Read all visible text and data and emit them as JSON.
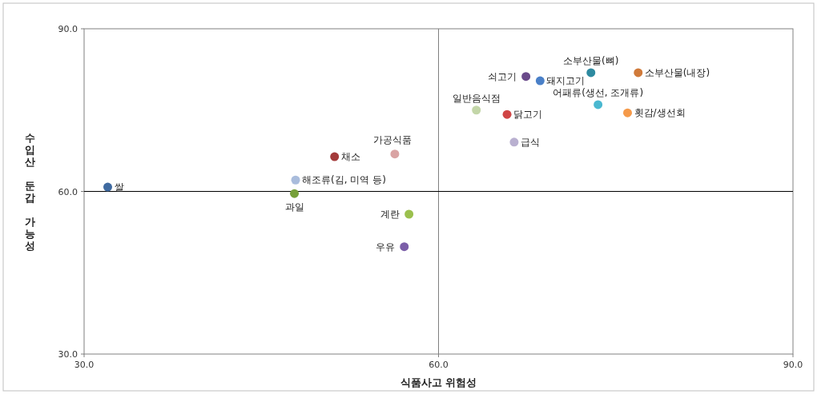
{
  "chart_data": {
    "type": "scatter",
    "xlabel": "식품사고 위험성",
    "ylabel": "수입산 둔갑 가능성",
    "xlim": [
      30,
      90
    ],
    "ylim": [
      30,
      90
    ],
    "xticks": [
      {
        "value": 30,
        "label": "30.0"
      },
      {
        "value": 60,
        "label": "60.0"
      },
      {
        "value": 90,
        "label": "90.0"
      }
    ],
    "yticks": [
      {
        "value": 30,
        "label": "30.0"
      },
      {
        "value": 60,
        "label": "60.0"
      },
      {
        "value": 90,
        "label": "90.0"
      }
    ],
    "grid": false,
    "marker": "circle",
    "ref_lines": [
      {
        "axis": "x",
        "value": 60,
        "color": "#808080"
      },
      {
        "axis": "y",
        "value": 60,
        "color": "#000000"
      }
    ],
    "series": [
      {
        "name": "쌀",
        "color": "#3f6aa0",
        "x": [
          32.0
        ],
        "values": [
          60.8
        ]
      },
      {
        "name": "과일",
        "color": "#77a03a",
        "x": [
          47.8
        ],
        "values": [
          59.6
        ]
      },
      {
        "name": "해조류(김, 미역 등)",
        "color": "#a9bcdc",
        "x": [
          47.9
        ],
        "values": [
          62.1
        ]
      },
      {
        "name": "채소",
        "color": "#a33a3a",
        "x": [
          51.2
        ],
        "values": [
          66.4
        ]
      },
      {
        "name": "가공식품",
        "color": "#d9a3a3",
        "x": [
          56.3
        ],
        "values": [
          66.9
        ]
      },
      {
        "name": "계란",
        "color": "#9bc04e",
        "x": [
          57.5
        ],
        "values": [
          55.8
        ]
      },
      {
        "name": "우유",
        "color": "#7b5ea8",
        "x": [
          57.1
        ],
        "values": [
          49.8
        ]
      },
      {
        "name": "일반음식점",
        "color": "#c3d6a8",
        "x": [
          63.2
        ],
        "values": [
          75.0
        ]
      },
      {
        "name": "닭고기",
        "color": "#d04545",
        "x": [
          65.8
        ],
        "values": [
          74.2
        ]
      },
      {
        "name": "급식",
        "color": "#b9b0d0",
        "x": [
          66.4
        ],
        "values": [
          69.1
        ]
      },
      {
        "name": "쇠고기",
        "color": "#6a4a8a",
        "x": [
          67.4
        ],
        "values": [
          81.2
        ]
      },
      {
        "name": "돼지고기",
        "color": "#4a80c8",
        "x": [
          68.6
        ],
        "values": [
          80.4
        ]
      },
      {
        "name": "소부산물(뼈)",
        "color": "#2e8aa0",
        "x": [
          72.9
        ],
        "values": [
          81.9
        ]
      },
      {
        "name": "어패류(생선, 조개류)",
        "color": "#4ab8d0",
        "x": [
          73.5
        ],
        "values": [
          76.0
        ]
      },
      {
        "name": "횟감/생선회",
        "color": "#f59a4a",
        "x": [
          76.0
        ],
        "values": [
          74.5
        ]
      },
      {
        "name": "소부산물(내장)",
        "color": "#d07a3a",
        "x": [
          76.9
        ],
        "values": [
          81.9
        ]
      }
    ]
  }
}
